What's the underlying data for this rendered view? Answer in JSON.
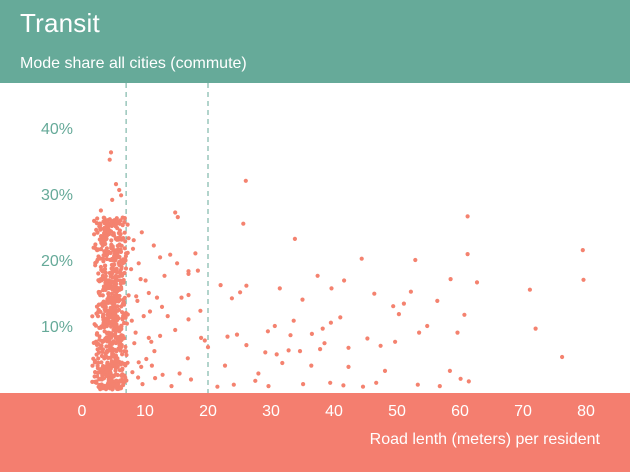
{
  "header": {
    "title": "Transit",
    "subtitle": "Mode share all cities (commute)"
  },
  "colors": {
    "header_bg": "#66aa99",
    "footer_bg": "#f47e6f",
    "point": "#f4826f",
    "reference_line": "#66aa99",
    "y_tick_text": "#66aa99"
  },
  "chart_data": {
    "type": "scatter",
    "title": "Transit",
    "subtitle": "Mode share all cities (commute)",
    "xlabel": "Road lenth (meters) per resident",
    "ylabel": "",
    "xlim": [
      0,
      80
    ],
    "ylim": [
      0,
      40
    ],
    "x_ticks": [
      "0",
      "10",
      "20",
      "30",
      "40",
      "50",
      "60",
      "70",
      "80"
    ],
    "y_ticks": [
      "10%",
      "20%",
      "30%",
      "40%"
    ],
    "y_tick_values": [
      10,
      20,
      30,
      40
    ],
    "x_tick_values": [
      0,
      10,
      20,
      30,
      40,
      50,
      60,
      70,
      80
    ],
    "reference_lines_x": [
      7,
      20
    ],
    "grid": false,
    "legend": "none",
    "series": [
      {
        "color": "#f4826f",
        "points": [
          [
            4.6,
            36.3
          ],
          [
            4.4,
            35.2
          ],
          [
            26,
            32
          ],
          [
            5.4,
            31.5
          ],
          [
            5.9,
            30.6
          ],
          [
            6.2,
            29.8
          ],
          [
            4.8,
            29.1
          ],
          [
            14.8,
            27.2
          ],
          [
            3.0,
            27.5
          ],
          [
            15.2,
            26.5
          ],
          [
            61.2,
            26.6
          ],
          [
            25.6,
            25.5
          ],
          [
            3.4,
            25.8
          ],
          [
            6.1,
            26.0
          ],
          [
            9.5,
            24.2
          ],
          [
            7.4,
            23.3
          ],
          [
            33.8,
            23.2
          ],
          [
            11.4,
            22.2
          ],
          [
            2.4,
            21.5
          ],
          [
            79.5,
            21.5
          ],
          [
            8.1,
            21.7
          ],
          [
            14.0,
            20.8
          ],
          [
            18.0,
            21.0
          ],
          [
            61.2,
            20.9
          ],
          [
            12.4,
            20.4
          ],
          [
            15.1,
            19.5
          ],
          [
            44.4,
            20.2
          ],
          [
            52.9,
            20.0
          ],
          [
            16.9,
            18.3
          ],
          [
            18.4,
            18.4
          ],
          [
            37.4,
            17.6
          ],
          [
            62.7,
            16.6
          ],
          [
            58.5,
            17.1
          ],
          [
            79.6,
            17.0
          ],
          [
            13.1,
            17.6
          ],
          [
            10.1,
            16.9
          ],
          [
            9.3,
            17.1
          ],
          [
            41.6,
            16.9
          ],
          [
            16.9,
            17.9
          ],
          [
            22.0,
            16.2
          ],
          [
            26.1,
            16.1
          ],
          [
            25.1,
            15.1
          ],
          [
            31.4,
            15.7
          ],
          [
            39.6,
            15.7
          ],
          [
            46.4,
            14.9
          ],
          [
            52.2,
            15.2
          ],
          [
            71.1,
            15.5
          ],
          [
            10.6,
            15.0
          ],
          [
            11.9,
            14.3
          ],
          [
            15.8,
            14.3
          ],
          [
            16.9,
            14.7
          ],
          [
            23.8,
            14.2
          ],
          [
            35.0,
            14.0
          ],
          [
            51.1,
            13.4
          ],
          [
            56.4,
            13.8
          ],
          [
            49.4,
            13.0
          ],
          [
            12.7,
            12.9
          ],
          [
            18.8,
            12.3
          ],
          [
            50.3,
            11.8
          ],
          [
            60.7,
            11.7
          ],
          [
            13.6,
            11.5
          ],
          [
            16.9,
            11.0
          ],
          [
            41.0,
            11.3
          ],
          [
            33.6,
            10.8
          ],
          [
            39.5,
            10.5
          ],
          [
            30.6,
            10.0
          ],
          [
            54.8,
            10.0
          ],
          [
            72.0,
            9.6
          ],
          [
            14.8,
            9.4
          ],
          [
            29.5,
            9.2
          ],
          [
            38.2,
            9.6
          ],
          [
            53.5,
            9.0
          ],
          [
            59.6,
            9.0
          ],
          [
            24.6,
            8.7
          ],
          [
            33.1,
            8.6
          ],
          [
            36.5,
            8.8
          ],
          [
            12.4,
            8.5
          ],
          [
            18.9,
            8.2
          ],
          [
            23.1,
            8.4
          ],
          [
            38.5,
            7.4
          ],
          [
            45.3,
            8.1
          ],
          [
            49.7,
            7.6
          ],
          [
            11.0,
            7.6
          ],
          [
            19.5,
            7.8
          ],
          [
            20.0,
            6.8
          ],
          [
            26.1,
            7.1
          ],
          [
            32.8,
            6.3
          ],
          [
            34.6,
            6.2
          ],
          [
            37.8,
            6.5
          ],
          [
            42.3,
            6.7
          ],
          [
            47.4,
            7.0
          ],
          [
            76.2,
            5.3
          ],
          [
            29.1,
            6.0
          ],
          [
            30.9,
            5.7
          ],
          [
            16.8,
            5.1
          ],
          [
            22.7,
            4.0
          ],
          [
            31.8,
            4.4
          ],
          [
            36.4,
            4.0
          ],
          [
            42.3,
            3.8
          ],
          [
            48.1,
            3.2
          ],
          [
            58.4,
            3.2
          ],
          [
            60.1,
            2.0
          ],
          [
            15.5,
            2.8
          ],
          [
            28.0,
            2.8
          ],
          [
            17.3,
            1.9
          ],
          [
            24.1,
            1.1
          ],
          [
            27.5,
            1.7
          ],
          [
            35.1,
            1.2
          ],
          [
            39.4,
            1.4
          ],
          [
            41.5,
            1.0
          ],
          [
            46.7,
            1.4
          ],
          [
            53.3,
            1.1
          ],
          [
            61.4,
            1.6
          ],
          [
            9.6,
            1.2
          ],
          [
            11.6,
            2.1
          ],
          [
            12.8,
            2.6
          ],
          [
            14.2,
            0.9
          ],
          [
            21.5,
            0.8
          ],
          [
            29.6,
            0.9
          ],
          [
            44.6,
            0.8
          ],
          [
            56.8,
            0.9
          ],
          [
            8.0,
            3.0
          ],
          [
            9.0,
            4.5
          ],
          [
            10.2,
            5.0
          ],
          [
            11.5,
            6.2
          ],
          [
            8.5,
            9.0
          ],
          [
            9.8,
            11.5
          ],
          [
            10.8,
            12.2
          ],
          [
            8.8,
            13.8
          ],
          [
            9.0,
            19.5
          ],
          [
            8.2,
            23.0
          ],
          [
            7.8,
            18.6
          ],
          [
            8.6,
            14.5
          ],
          [
            7.9,
            10.8
          ],
          [
            8.3,
            7.4
          ],
          [
            8.9,
            2.2
          ],
          [
            9.4,
            3.8
          ],
          [
            10.6,
            8.2
          ],
          [
            11.1,
            4.0
          ]
        ]
      }
    ]
  },
  "dense_cluster": {
    "x_range": [
      1.6,
      7.6
    ],
    "y_range": [
      0.4,
      26.5
    ],
    "count": 720
  }
}
